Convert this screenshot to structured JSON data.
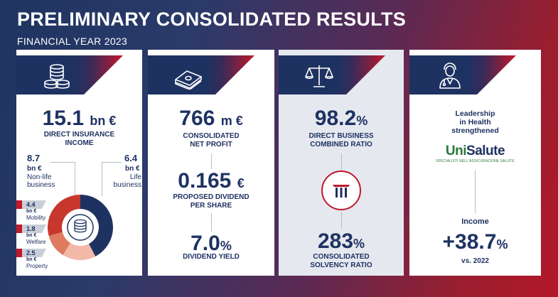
{
  "header": {
    "title": "PRELIMINARY CONSOLIDATED RESULTS",
    "subtitle": "FINANCIAL YEAR 2023"
  },
  "panel1": {
    "icon": "coins-stack-icon",
    "main_value": "15.1",
    "main_unit": "bn €",
    "main_label_1": "DIRECT INSURANCE",
    "main_label_2": "INCOME",
    "nonlife_value": "8.7",
    "nonlife_unit": "bn €",
    "nonlife_label_1": "Non-life",
    "nonlife_label_2": "business",
    "life_value": "6.4",
    "life_unit": "bn €",
    "life_label_1": "Life",
    "life_label_2": "business",
    "segments": [
      {
        "value": "4.4",
        "unit": "bn €",
        "name": "Mobility"
      },
      {
        "value": "1.8",
        "unit": "bn €",
        "name": "Welfare"
      },
      {
        "value": "2.5",
        "unit": "bn €",
        "name": "Property"
      }
    ],
    "donut": {
      "life": 6.4,
      "mobility": 4.4,
      "welfare": 1.8,
      "property": 2.5,
      "colors": {
        "life": "#1e3262",
        "mobility": "#c8372d",
        "welfare": "#e07a5f",
        "property": "#f2b8a8"
      }
    }
  },
  "panel2": {
    "icon": "banknotes-icon",
    "profit_value": "766",
    "profit_unit": "m €",
    "profit_label_1": "CONSOLIDATED",
    "profit_label_2": "NET PROFIT",
    "dividend_value": "0.165",
    "dividend_unit": "€",
    "dividend_label_1": "PROPOSED DIVIDEND",
    "dividend_label_2": "PER SHARE",
    "yield_value": "7.0",
    "yield_unit": "%",
    "yield_label": "DIVIDEND YIELD"
  },
  "panel3": {
    "icon": "balance-scale-icon",
    "ratio_value": "98.2",
    "ratio_unit": "%",
    "ratio_label_1": "DIRECT BUSINESS",
    "ratio_label_2": "COMBINED RATIO",
    "solvency_value": "283",
    "solvency_unit": "%",
    "solvency_label_1": "CONSOLIDATED",
    "solvency_label_2": "SOLVENCY RATIO"
  },
  "panel4": {
    "icon": "doctor-icon",
    "leadership_1": "Leadership",
    "leadership_2": "in Health",
    "leadership_3": "strengthened",
    "logo_1": "Uni",
    "logo_2": "Salute",
    "logo_tagline": "SPECIALISTI NELL'ASSICURAZIONE SALUTE",
    "income_label": "Income",
    "growth_value": "+38.7",
    "growth_unit": "%",
    "growth_compare": "vs. 2022"
  }
}
